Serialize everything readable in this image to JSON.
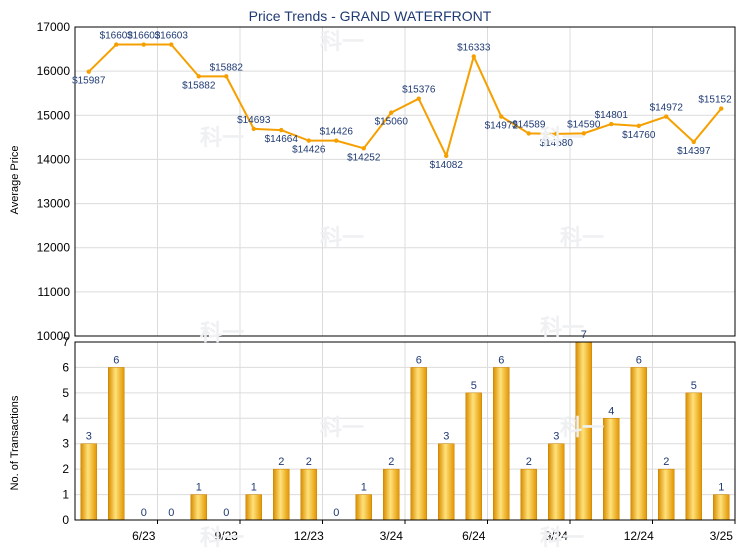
{
  "chart_data": [
    {
      "type": "line",
      "title": "Price Trends - GRAND WATERFRONT",
      "ylabel": "Average Price",
      "ylim": [
        10000,
        17000
      ],
      "yticks": [
        10000,
        11000,
        12000,
        13000,
        14000,
        15000,
        16000,
        17000
      ],
      "ytick_labels": [
        "10000",
        "11000",
        "12000",
        "13000",
        "14000",
        "15000",
        "16000",
        "17000"
      ],
      "x": [
        "2023-04",
        "2023-05",
        "2023-06",
        "2023-07",
        "2023-08",
        "2023-09",
        "2023-10",
        "2023-11",
        "2023-12",
        "2024-01",
        "2024-02",
        "2024-03",
        "2024-04",
        "2024-05",
        "2024-06",
        "2024-07",
        "2024-08",
        "2024-09",
        "2024-10",
        "2024-11",
        "2024-12",
        "2025-01",
        "2025-02",
        "2025-03"
      ],
      "values": [
        15987,
        16603,
        16603,
        16603,
        15882,
        15882,
        14693,
        14664,
        14426,
        14426,
        14252,
        15060,
        15376,
        14082,
        16333,
        14972,
        14589,
        14580,
        14590,
        14801,
        14760,
        14972,
        14397,
        15152
      ],
      "data_labels": [
        "$15987",
        "$16603",
        "$16603",
        "$16603",
        "$15882",
        "$15882",
        "$14693",
        "$14664",
        "$14426",
        "$14426",
        "$14252",
        "$15060",
        "$15376",
        "$14082",
        "$16333",
        "$14972",
        "$14589",
        "$14580",
        "$14590",
        "$14801",
        "$14760",
        "$14972",
        "$14397",
        "$15152"
      ],
      "color": "#f5a000",
      "grid": true
    },
    {
      "type": "bar",
      "ylabel": "No. of Transactions",
      "ylim": [
        0,
        7
      ],
      "yticks": [
        0,
        1,
        2,
        3,
        4,
        5,
        6,
        7
      ],
      "ytick_labels": [
        "0",
        "1",
        "2",
        "3",
        "4",
        "5",
        "6",
        "7"
      ],
      "x": [
        "2023-04",
        "2023-05",
        "2023-06",
        "2023-07",
        "2023-08",
        "2023-09",
        "2023-10",
        "2023-11",
        "2023-12",
        "2024-01",
        "2024-02",
        "2024-03",
        "2024-04",
        "2024-05",
        "2024-06",
        "2024-07",
        "2024-08",
        "2024-09",
        "2024-10",
        "2024-11",
        "2024-12",
        "2025-01",
        "2025-02",
        "2025-03"
      ],
      "values": [
        3,
        6,
        0,
        0,
        1,
        0,
        1,
        2,
        2,
        0,
        1,
        2,
        6,
        3,
        5,
        6,
        2,
        3,
        7,
        4,
        6,
        2,
        5,
        1
      ],
      "xtick_labels": [
        {
          "label": "6/23",
          "index": 2
        },
        {
          "label": "9/23",
          "index": 5
        },
        {
          "label": "12/23",
          "index": 8
        },
        {
          "label": "3/24",
          "index": 11
        },
        {
          "label": "6/24",
          "index": 14
        },
        {
          "label": "9/24",
          "index": 17
        },
        {
          "label": "12/24",
          "index": 20
        },
        {
          "label": "3/25",
          "index": 23
        }
      ],
      "color": "#f5a000",
      "grid": true
    }
  ],
  "watermark": "科一"
}
